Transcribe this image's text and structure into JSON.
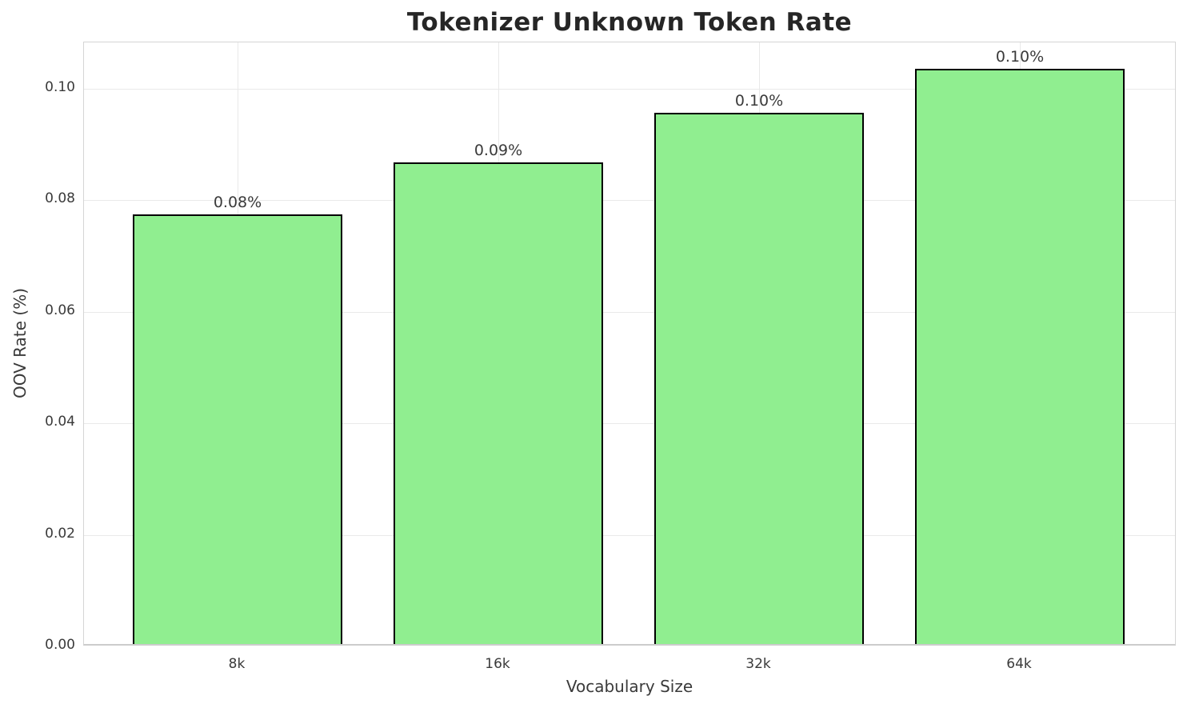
{
  "chart_data": {
    "type": "bar",
    "title": "Tokenizer Unknown Token Rate",
    "xlabel": "Vocabulary Size",
    "ylabel": "OOV Rate (%)",
    "categories": [
      "8k",
      "16k",
      "32k",
      "64k"
    ],
    "values": [
      0.077,
      0.0864,
      0.0953,
      0.1032
    ],
    "bar_labels": [
      "0.08%",
      "0.09%",
      "0.10%",
      "0.10%"
    ],
    "yticks": [
      0.0,
      0.02,
      0.04,
      0.06,
      0.08,
      0.1
    ],
    "ytick_labels": [
      "0.00",
      "0.02",
      "0.04",
      "0.06",
      "0.08",
      "0.10"
    ],
    "ylim": [
      0,
      0.1083
    ],
    "grid": true,
    "legend": "none",
    "bar_color": "#90EE90",
    "bar_edge_color": "#000000",
    "grid_color": "#e9e9e9",
    "background_color": "#ffffff",
    "text_color": "#3a3a3a"
  }
}
